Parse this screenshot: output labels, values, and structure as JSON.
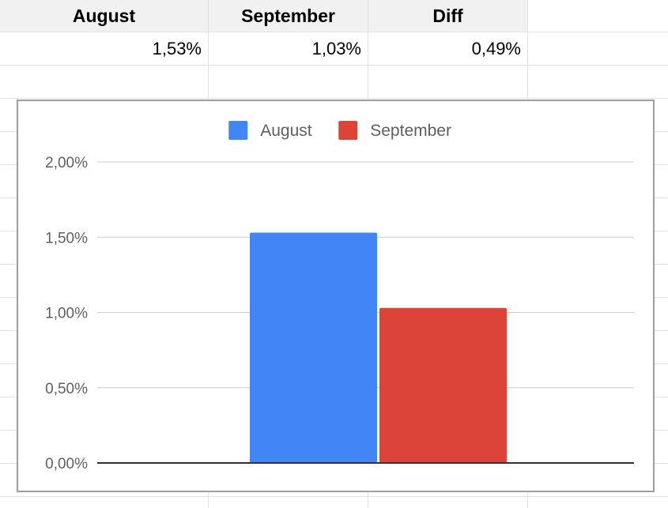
{
  "sheet": {
    "headers": [
      "August",
      "September",
      "Diff"
    ],
    "row1": [
      "1,53%",
      "1,03%",
      "0,49%"
    ]
  },
  "chart_data": {
    "type": "bar",
    "categories": [
      ""
    ],
    "series": [
      {
        "name": "August",
        "values": [
          1.53
        ],
        "color": "#4285f4"
      },
      {
        "name": "September",
        "values": [
          1.03
        ],
        "color": "#db4437"
      }
    ],
    "ylim": [
      0,
      2
    ],
    "yticks": [
      0,
      0.5,
      1,
      1.5,
      2
    ],
    "ytick_labels": [
      "0,00%",
      "0,50%",
      "1,00%",
      "1,50%",
      "2,00%"
    ],
    "legend_position": "top",
    "grid": true
  }
}
